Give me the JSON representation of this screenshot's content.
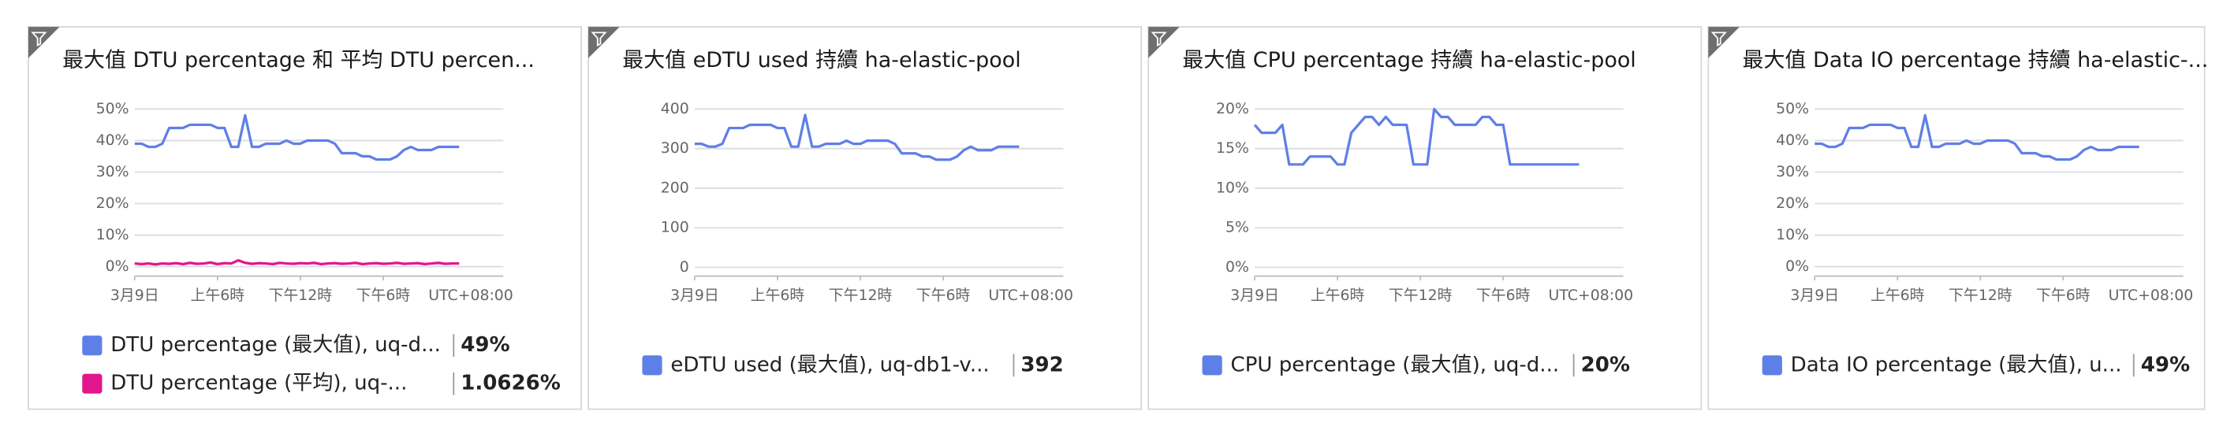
{
  "chart_data": [
    {
      "type": "line",
      "title": "最大值 DTU percentage 和 平均 DTU percen...",
      "x": [
        0,
        0.5,
        1,
        1.5,
        2,
        2.5,
        3,
        3.5,
        4,
        4.5,
        5,
        5.5,
        6,
        6.5,
        7,
        7.5,
        8,
        8.5,
        9,
        9.5,
        10,
        10.5,
        11,
        11.5,
        12,
        12.5,
        13,
        13.5,
        14,
        14.5,
        15,
        15.5,
        16,
        16.5,
        17,
        17.5,
        18,
        18.5,
        19,
        19.5,
        20,
        20.5,
        21,
        21.5,
        22,
        22.5,
        23,
        23.5
      ],
      "xlim": [
        0,
        26.7
      ],
      "xticks": [
        {
          "value": 0,
          "label": "3月9日"
        },
        {
          "value": 6,
          "label": "上午6時"
        },
        {
          "value": 12,
          "label": "下午12時"
        },
        {
          "value": 18,
          "label": "下午6時"
        }
      ],
      "timezone": "UTC+08:00",
      "ylim": [
        -3,
        50
      ],
      "yticks": [
        {
          "value": 0,
          "label": "0%"
        },
        {
          "value": 10,
          "label": "10%"
        },
        {
          "value": 20,
          "label": "20%"
        },
        {
          "value": 30,
          "label": "30%"
        },
        {
          "value": 40,
          "label": "40%"
        },
        {
          "value": 50,
          "label": "50%"
        }
      ],
      "grid": true,
      "series": [
        {
          "name": "DTU percentage (最大值), uq-d...",
          "color": "#5f7fe8",
          "summary": "49%",
          "values": [
            39,
            39,
            38,
            38,
            39,
            44,
            44,
            44,
            45,
            45,
            45,
            45,
            44,
            44,
            38,
            38,
            48,
            38,
            38,
            39,
            39,
            39,
            40,
            39,
            39,
            40,
            40,
            40,
            40,
            39,
            36,
            36,
            36,
            35,
            35,
            34,
            34,
            34,
            35,
            37,
            38,
            37,
            37,
            37,
            38,
            38,
            38,
            38
          ]
        },
        {
          "name": "DTU percentage (平均), uq-...",
          "color": "#e3158c",
          "summary": "1.0626%",
          "values": [
            1,
            0.8,
            1,
            0.7,
            1,
            0.9,
            1.1,
            0.8,
            1.2,
            0.9,
            1,
            1.3,
            0.8,
            1.1,
            1,
            2,
            1.2,
            0.9,
            1.1,
            1,
            0.8,
            1.2,
            1,
            0.9,
            1.1,
            1,
            1.2,
            0.8,
            1,
            1.1,
            0.9,
            1,
            1.2,
            0.8,
            1,
            1.1,
            0.9,
            1,
            1.2,
            0.9,
            1,
            1.1,
            0.8,
            1,
            1.2,
            0.9,
            1,
            1
          ]
        }
      ]
    },
    {
      "type": "line",
      "title": "最大值 eDTU used 持續 ha-elastic-pool",
      "x": [
        0,
        0.5,
        1,
        1.5,
        2,
        2.5,
        3,
        3.5,
        4,
        4.5,
        5,
        5.5,
        6,
        6.5,
        7,
        7.5,
        8,
        8.5,
        9,
        9.5,
        10,
        10.5,
        11,
        11.5,
        12,
        12.5,
        13,
        13.5,
        14,
        14.5,
        15,
        15.5,
        16,
        16.5,
        17,
        17.5,
        18,
        18.5,
        19,
        19.5,
        20,
        20.5,
        21,
        21.5,
        22,
        22.5,
        23,
        23.5
      ],
      "xlim": [
        0,
        26.7
      ],
      "xticks": [
        {
          "value": 0,
          "label": "3月9日"
        },
        {
          "value": 6,
          "label": "上午6時"
        },
        {
          "value": 12,
          "label": "下午12時"
        },
        {
          "value": 18,
          "label": "下午6時"
        }
      ],
      "timezone": "UTC+08:00",
      "ylim": [
        -22,
        400
      ],
      "yticks": [
        0,
        100,
        200,
        300,
        400
      ],
      "grid": true,
      "series": [
        {
          "name": "eDTU used (最大值), uq-db1-v...",
          "color": "#5f7fe8",
          "summary": "392",
          "values": [
            312,
            312,
            305,
            305,
            312,
            352,
            352,
            352,
            360,
            360,
            360,
            360,
            352,
            352,
            305,
            305,
            385,
            305,
            305,
            312,
            312,
            312,
            320,
            312,
            312,
            320,
            320,
            320,
            320,
            312,
            288,
            288,
            288,
            280,
            280,
            272,
            272,
            272,
            280,
            296,
            305,
            296,
            296,
            296,
            305,
            305,
            305,
            305
          ]
        }
      ]
    },
    {
      "type": "line",
      "title": "最大值 CPU percentage 持續 ha-elastic-pool",
      "x": [
        0,
        0.5,
        1,
        1.5,
        2,
        2.5,
        3,
        3.5,
        4,
        4.5,
        5,
        5.5,
        6,
        6.5,
        7,
        7.5,
        8,
        8.5,
        9,
        9.5,
        10,
        10.5,
        11,
        11.5,
        12,
        12.5,
        13,
        13.5,
        14,
        14.5,
        15,
        15.5,
        16,
        16.5,
        17,
        17.5,
        18,
        18.5,
        19,
        19.5,
        20,
        20.5,
        21,
        21.5,
        22,
        22.5,
        23,
        23.5
      ],
      "xlim": [
        0,
        26.7
      ],
      "xticks": [
        {
          "value": 0,
          "label": "3月9日"
        },
        {
          "value": 6,
          "label": "上午6時"
        },
        {
          "value": 12,
          "label": "下午12時"
        },
        {
          "value": 18,
          "label": "下午6時"
        }
      ],
      "timezone": "UTC+08:00",
      "ylim": [
        -1.1,
        20
      ],
      "yticks": [
        {
          "value": 0,
          "label": "0%"
        },
        {
          "value": 5,
          "label": "5%"
        },
        {
          "value": 10,
          "label": "10%"
        },
        {
          "value": 15,
          "label": "15%"
        },
        {
          "value": 20,
          "label": "20%"
        }
      ],
      "grid": true,
      "series": [
        {
          "name": "CPU percentage (最大值), uq-d...",
          "color": "#5f7fe8",
          "summary": "20%",
          "values": [
            18,
            17,
            17,
            17,
            18,
            13,
            13,
            13,
            14,
            14,
            14,
            14,
            13,
            13,
            17,
            18,
            19,
            19,
            18,
            19,
            18,
            18,
            18,
            13,
            13,
            13,
            20,
            19,
            19,
            18,
            18,
            18,
            18,
            19,
            19,
            18,
            18,
            13,
            13,
            13,
            13,
            13,
            13,
            13,
            13,
            13,
            13,
            13
          ]
        }
      ]
    },
    {
      "type": "line",
      "title": "最大值 Data IO percentage 持續 ha-elastic-...",
      "x": [
        0,
        0.5,
        1,
        1.5,
        2,
        2.5,
        3,
        3.5,
        4,
        4.5,
        5,
        5.5,
        6,
        6.5,
        7,
        7.5,
        8,
        8.5,
        9,
        9.5,
        10,
        10.5,
        11,
        11.5,
        12,
        12.5,
        13,
        13.5,
        14,
        14.5,
        15,
        15.5,
        16,
        16.5,
        17,
        17.5,
        18,
        18.5,
        19,
        19.5,
        20,
        20.5,
        21,
        21.5,
        22,
        22.5,
        23,
        23.5
      ],
      "xlim": [
        0,
        26.7
      ],
      "xticks": [
        {
          "value": 0,
          "label": "3月9日"
        },
        {
          "value": 6,
          "label": "上午6時"
        },
        {
          "value": 12,
          "label": "下午12時"
        },
        {
          "value": 18,
          "label": "下午6時"
        }
      ],
      "timezone": "UTC+08:00",
      "ylim": [
        -3,
        50
      ],
      "yticks": [
        {
          "value": 0,
          "label": "0%"
        },
        {
          "value": 10,
          "label": "10%"
        },
        {
          "value": 20,
          "label": "20%"
        },
        {
          "value": 30,
          "label": "30%"
        },
        {
          "value": 40,
          "label": "40%"
        },
        {
          "value": 50,
          "label": "50%"
        }
      ],
      "grid": true,
      "series": [
        {
          "name": "Data IO percentage (最大值), u...",
          "color": "#5f7fe8",
          "summary": "49%",
          "values": [
            39,
            39,
            38,
            38,
            39,
            44,
            44,
            44,
            45,
            45,
            45,
            45,
            44,
            44,
            38,
            38,
            48,
            38,
            38,
            39,
            39,
            39,
            40,
            39,
            39,
            40,
            40,
            40,
            40,
            39,
            36,
            36,
            36,
            35,
            35,
            34,
            34,
            34,
            35,
            37,
            38,
            37,
            37,
            37,
            38,
            38,
            38,
            38
          ]
        }
      ]
    }
  ]
}
